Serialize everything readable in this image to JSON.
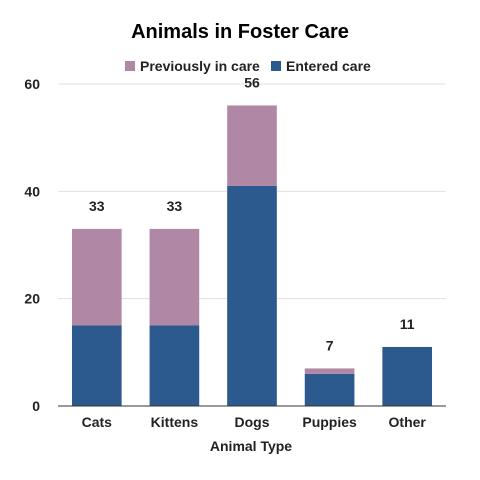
{
  "chart_data": {
    "type": "bar",
    "stacked": true,
    "title": "Animals in Foster Care",
    "xlabel": "Animal Type",
    "ylabel": "",
    "categories": [
      "Cats",
      "Kittens",
      "Dogs",
      "Puppies",
      "Other"
    ],
    "series": [
      {
        "name": "Entered care",
        "values": [
          15,
          15,
          41,
          6,
          11
        ],
        "color": "#2d5a8e"
      },
      {
        "name": "Previously in care",
        "values": [
          18,
          18,
          15,
          1,
          0
        ],
        "color": "#b088a6"
      }
    ],
    "legend_order": [
      "Previously in care",
      "Entered care"
    ],
    "totals": [
      "33",
      "33",
      "56",
      "7",
      "11"
    ],
    "yticks": [
      "0",
      "20",
      "40",
      "60"
    ],
    "ylim": [
      0,
      60
    ],
    "grid": true,
    "legend_position": "top"
  }
}
